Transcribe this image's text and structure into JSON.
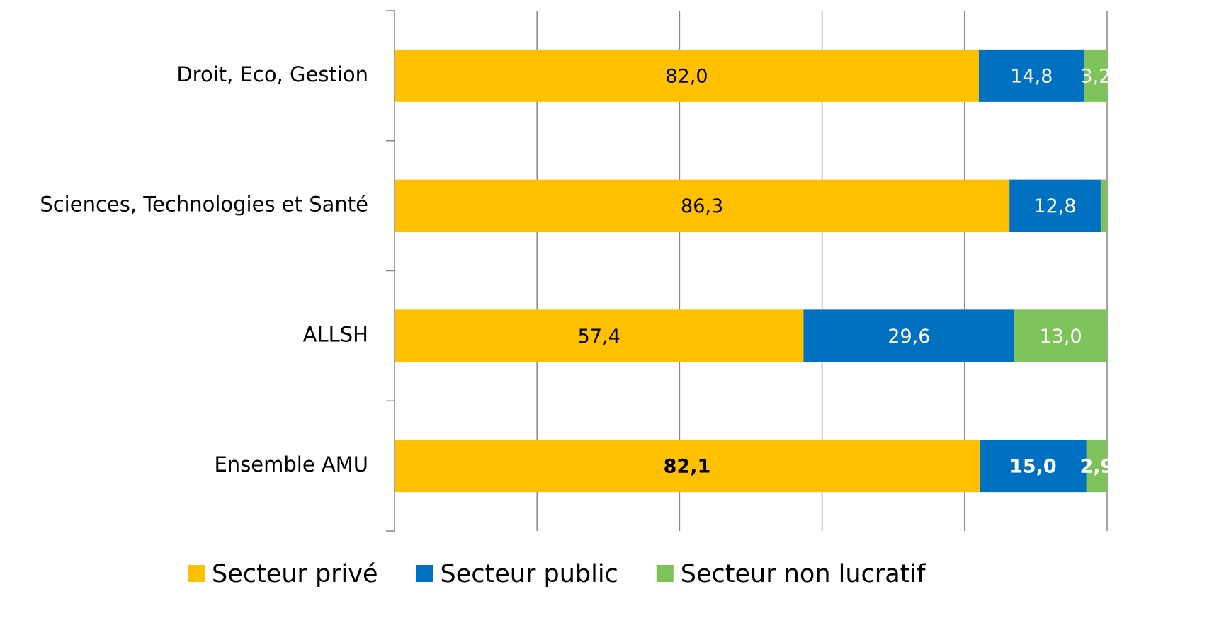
{
  "chart_data": {
    "type": "stacked-barh",
    "categories": [
      "Droit, Eco, Gestion",
      "Sciences, Technologies et Santé",
      "ALLSH",
      "Ensemble AMU"
    ],
    "series": [
      {
        "name": "Secteur privé",
        "color": "#ffc000",
        "label_color": "#000000",
        "values": [
          82.0,
          86.3,
          57.4,
          82.1
        ],
        "value_labels": [
          "82,0",
          "86,3",
          "57,4",
          "82,1"
        ]
      },
      {
        "name": "Secteur public",
        "color": "#0070c0",
        "label_color": "#ffffff",
        "values": [
          14.8,
          12.8,
          29.6,
          15.0
        ],
        "value_labels": [
          "14,8",
          "12,8",
          "29,6",
          "15,0"
        ]
      },
      {
        "name": "Secteur non lucratif",
        "color": "#7ec35a",
        "label_color": "#ffffff",
        "values": [
          3.2,
          0.9,
          13.0,
          2.9
        ],
        "value_labels": [
          "3,2",
          null,
          "13,0",
          "2,9"
        ]
      }
    ],
    "bold_categories": [
      false,
      false,
      false,
      true
    ],
    "xlim": [
      0,
      100
    ],
    "xticks": [
      0,
      20,
      40,
      60,
      80,
      100
    ],
    "grid": true,
    "legend": "bottom"
  }
}
